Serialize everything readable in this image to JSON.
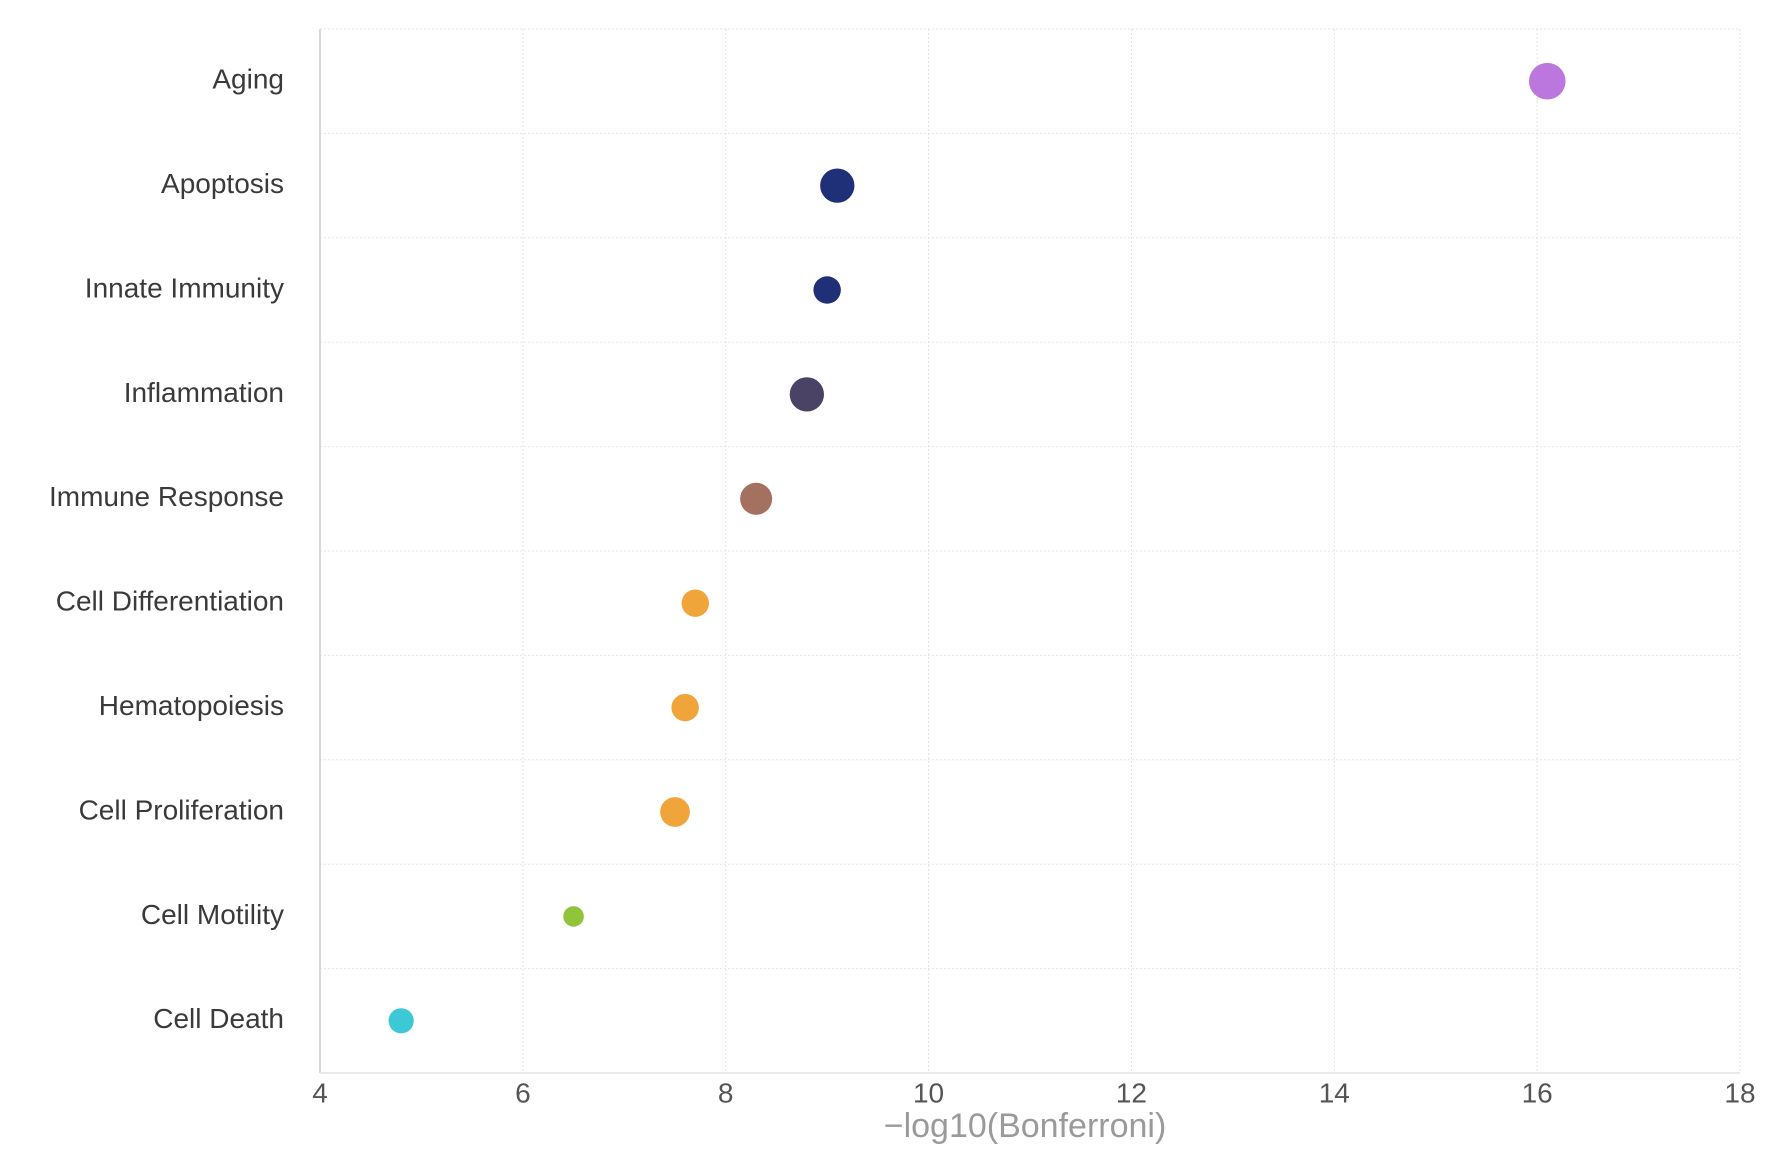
{
  "chart_data": {
    "type": "dot",
    "x_label": "−log10(Bonferroni)",
    "categories": [
      "Aging",
      "Apoptosis",
      "Innate Immunity",
      "Inflammation",
      "Immune Response",
      "Cell Differentiation",
      "Hematopoiesis",
      "Cell Proliferation",
      "Cell Motility",
      "Cell Death"
    ],
    "values": [
      16.1,
      9.1,
      9.0,
      8.8,
      8.3,
      7.7,
      7.6,
      7.5,
      6.5,
      4.8
    ],
    "sizes": [
      16,
      15,
      12,
      15,
      14,
      12,
      12,
      13,
      9,
      11
    ],
    "colors": [
      "#bb77dd",
      "#1f2f78",
      "#1f2f78",
      "#4a4366",
      "#a4705f",
      "#efa53a",
      "#efa53a",
      "#efa53a",
      "#90c53a",
      "#3cc8d4"
    ],
    "xlim": [
      4,
      18
    ],
    "xticks": [
      4,
      6,
      8,
      10,
      12,
      14,
      16,
      18
    ],
    "grid": true
  }
}
